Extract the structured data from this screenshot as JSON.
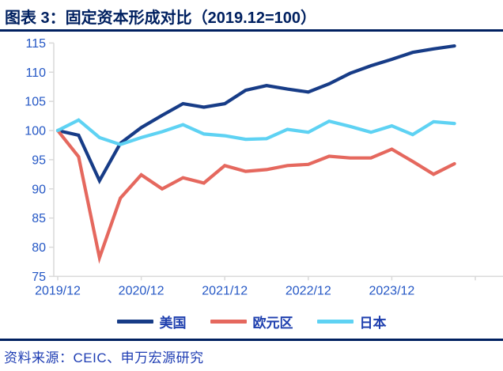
{
  "title": "图表 3：固定资本形成对比（2019.12=100）",
  "source": "资料来源：CEIC、申万宏源研究",
  "colors": {
    "title": "#002060",
    "rule": "#002060",
    "axis_line": "#d9d9d9",
    "axis_label": "#2457c5",
    "legend_text": "#1e3fae",
    "source_text": "#1e3db3",
    "us_line": "#173c87",
    "eurozone_line": "#e5685e",
    "japan_line": "#5ed2f3"
  },
  "chart_data": {
    "type": "line",
    "title": "固定资本形成对比（2019.12=100）",
    "x": [
      "2019/12",
      "2020/03",
      "2020/06",
      "2020/09",
      "2020/12",
      "2021/03",
      "2021/06",
      "2021/09",
      "2021/12",
      "2022/03",
      "2022/06",
      "2022/09",
      "2022/12",
      "2023/03",
      "2023/06",
      "2023/09",
      "2023/12",
      "2024/03",
      "2024/06",
      "2024/09"
    ],
    "x_tick_labels": [
      "2019/12",
      "2020/12",
      "2021/12",
      "2022/12",
      "2023/12"
    ],
    "x_tick_indices": [
      0,
      4,
      8,
      12,
      16
    ],
    "series": [
      {
        "name": "美国",
        "color": "#173c87",
        "values": [
          100,
          99.2,
          91.4,
          97.8,
          100.5,
          102.6,
          104.6,
          104.0,
          104.6,
          106.9,
          107.7,
          107.1,
          106.6,
          108.0,
          109.8,
          111.1,
          112.2,
          113.4,
          114.0,
          114.5
        ]
      },
      {
        "name": "欧元区",
        "color": "#e5685e",
        "values": [
          100,
          95.5,
          78.2,
          88.4,
          92.4,
          90.0,
          91.9,
          91.0,
          94.0,
          93.0,
          93.3,
          94.0,
          94.2,
          95.6,
          95.3,
          95.3,
          96.8,
          94.7,
          92.5,
          94.3
        ]
      },
      {
        "name": "日本",
        "color": "#5ed2f3",
        "values": [
          100,
          101.8,
          98.8,
          97.6,
          98.8,
          99.8,
          101.0,
          99.4,
          99.1,
          98.5,
          98.6,
          100.2,
          99.7,
          101.6,
          100.7,
          99.7,
          100.8,
          99.3,
          101.5,
          101.2
        ]
      }
    ],
    "ylim": [
      75,
      115
    ],
    "ytick_step": 5,
    "grid": false,
    "legend_position": "bottom"
  }
}
